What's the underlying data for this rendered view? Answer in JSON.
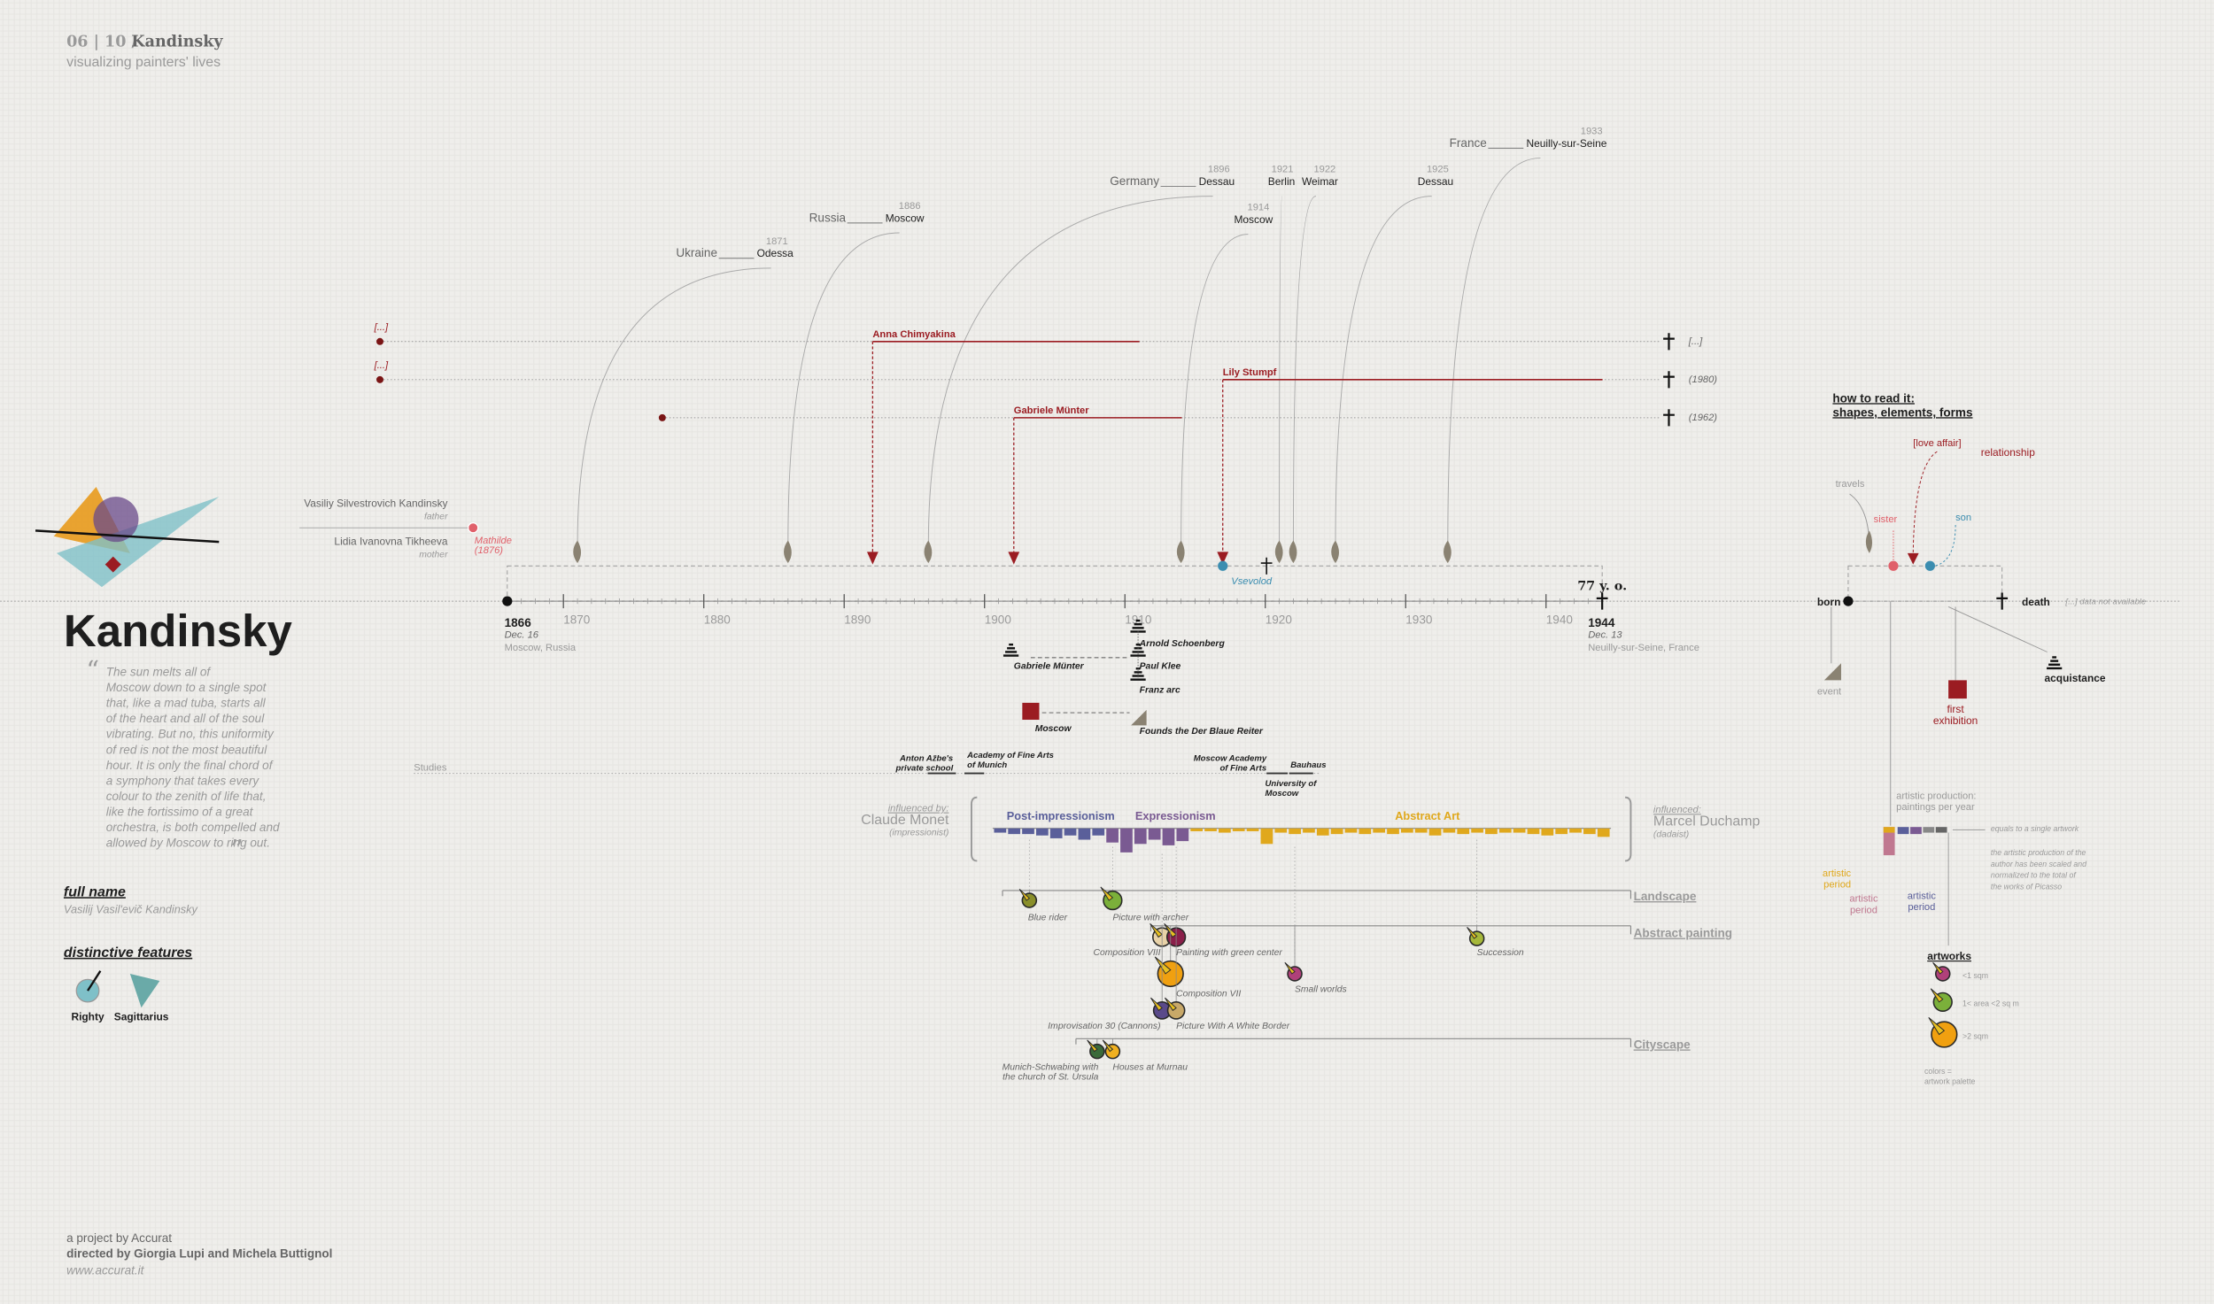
{
  "header": {
    "index": "06 | 10 /",
    "name": "Kandinsky",
    "subtitle": "visualizing painters' lives"
  },
  "title": "Kandinsky",
  "quote": {
    "open": "“",
    "close": "”",
    "lines": [
      "The sun melts all of",
      "Moscow down to a single spot",
      "that, like a mad tuba, starts all",
      "of the heart and all of the soul",
      "vibrating. But no, this uniformity",
      "of red is not the most beautiful",
      "hour. It is only the final chord of",
      "a symphony that takes every",
      "colour to the zenith of life that,",
      "like the fortissimo of a great",
      "orchestra, is both compelled and",
      "allowed by Moscow to ring out."
    ]
  },
  "full_name": {
    "label": "full name",
    "value": "Vasilij Vasil'evič Kandinsky"
  },
  "features": {
    "label": "distinctive features",
    "items": [
      "Righty",
      "Sagittarius"
    ]
  },
  "family": {
    "father": {
      "name": "Vasiliy Silvestrovich Kandinsky",
      "role": "father"
    },
    "mother": {
      "name": "Lidia Ivanovna Tikheeva",
      "role": "mother"
    },
    "sister": {
      "name": "Mathilde",
      "year": "(1876)"
    },
    "son": {
      "name": "Vsevolod"
    }
  },
  "timeline": {
    "ticks": [
      1870,
      1880,
      1890,
      1900,
      1910,
      1920,
      1930,
      1940
    ],
    "birth": {
      "year": 1866,
      "date": "Dec. 16",
      "place": "Moscow, Russia"
    },
    "death": {
      "year": 1944,
      "date": "Dec. 13",
      "place": "Neuilly-sur-Seine, France"
    },
    "age": "77 y. o."
  },
  "travels": [
    {
      "year": 1871,
      "country": "Ukraine",
      "city": "Odessa"
    },
    {
      "year": 1886,
      "country": "Russia",
      "city": "Moscow"
    },
    {
      "year": 1896,
      "country": "Germany",
      "city": "Dessau"
    },
    {
      "year": 1914,
      "city": "Moscow"
    },
    {
      "year": 1921,
      "city": "Berlin"
    },
    {
      "year": 1922,
      "city": "Weimar"
    },
    {
      "year": 1925,
      "city": "Dessau"
    },
    {
      "year": 1933,
      "country": "France",
      "city": "Neuilly-sur-Seine"
    }
  ],
  "relationships": [
    {
      "name": "Anna Chimyakina",
      "start": "[...]",
      "end": "[...]"
    },
    {
      "name": "Lily Stumpf",
      "start": "[...]",
      "end": "(1980)"
    },
    {
      "name": "Gabriele Münter",
      "end": "(1962)"
    }
  ],
  "acquaintances": [
    "Gabriele Münter",
    "Arnold Schoenberg",
    "Paul Klee",
    "Franz arc"
  ],
  "events": {
    "first_exhibition": "Moscow",
    "event": "Founds the Der Blaue Reiter"
  },
  "studies": {
    "label": "Studies",
    "schools": [
      [
        "Anton Ažbe's",
        "private school"
      ],
      [
        "Academy of Fine Arts",
        "of Munich"
      ],
      [
        "Moscow Academy",
        "of Fine Arts"
      ],
      [
        "University of",
        "Moscow"
      ],
      [
        "Bauhaus"
      ]
    ]
  },
  "influences": {
    "by": {
      "label": "influenced by:",
      "name": "Claude Monet",
      "movement": "(impressionist)"
    },
    "on": {
      "label": "influenced:",
      "name": "Marcel Duchamp",
      "movement": "(dadaist)"
    }
  },
  "periods": [
    {
      "name": "Post-impressionism",
      "color": "#5a5f9a",
      "values": [
        3,
        4,
        4,
        5,
        7,
        5,
        8,
        5
      ]
    },
    {
      "name": "Expressionism",
      "color": "#7a5a92",
      "values": [
        10,
        17,
        11,
        8,
        12,
        9
      ]
    },
    {
      "name": "Abstract Art",
      "color": "#e0a81c",
      "values": [
        2,
        2,
        3,
        2,
        2,
        11,
        3,
        4,
        3,
        5,
        4,
        3,
        4,
        3,
        4,
        3,
        3,
        5,
        3,
        4,
        3,
        4,
        3,
        3,
        4,
        5,
        4,
        3,
        4,
        6
      ]
    }
  ],
  "genres": [
    {
      "name": "Landscape",
      "artworks": [
        {
          "title": "Blue rider",
          "color": "#8a8f2a"
        },
        {
          "title": "Picture with archer",
          "color": "#7bb03a"
        }
      ]
    },
    {
      "name": "Abstract painting",
      "artworks": [
        {
          "title": "Composition VIII",
          "color": "#e8d2a8"
        },
        {
          "title": "Painting with green center",
          "color": "#8a1f4a"
        },
        {
          "title": "Small worlds",
          "color": "#b0407a"
        },
        {
          "title": "Succession",
          "color": "#a6b83a"
        },
        {
          "title": "Composition VII",
          "color": "#f0a010"
        },
        {
          "title": "Improvisation 30 (Cannons)",
          "color": "#5a4a8a"
        },
        {
          "title": "Picture With A White Border",
          "color": "#c8a868"
        }
      ]
    },
    {
      "name": "Cityscape",
      "artworks": [
        {
          "title": [
            "Munich-Schwabing with",
            "the church of St. Ursula"
          ],
          "color": "#3a6a3a"
        },
        {
          "title": "Houses at Murnau",
          "color": "#f0b020"
        }
      ]
    }
  ],
  "legend": {
    "title": [
      "how to read it:",
      "shapes, elements, forms"
    ],
    "travels": "travels",
    "sister": "sister",
    "son": "son",
    "love_affair": "[love affair]",
    "relationship": "relationship",
    "born": "born",
    "death": "death",
    "not_available": "[...] data not available",
    "event": "event",
    "first_exhibition": [
      "first",
      "exhibition"
    ],
    "acquaintance": "acquistance",
    "production": [
      "artistic production:",
      "paintings per year"
    ],
    "single": "equals to a single artwork",
    "note": [
      "the artistic production of the",
      "author has been scaled and",
      "normalized to the total of",
      "the works of Picasso"
    ],
    "periods": [
      [
        "artistic",
        "period"
      ],
      [
        "artistic",
        "period"
      ],
      [
        "artistic",
        "period"
      ]
    ],
    "artworks": "artworks",
    "sizes": [
      "<1 sqm",
      "1< area <2 sq m",
      ">2 sqm"
    ],
    "palette": [
      "colors =",
      "artwork palette"
    ]
  },
  "footer": {
    "project": "a project by Accurat",
    "directors": "directed by Giorgia Lupi and Michela Buttignol",
    "url": "www.accurat.it"
  }
}
